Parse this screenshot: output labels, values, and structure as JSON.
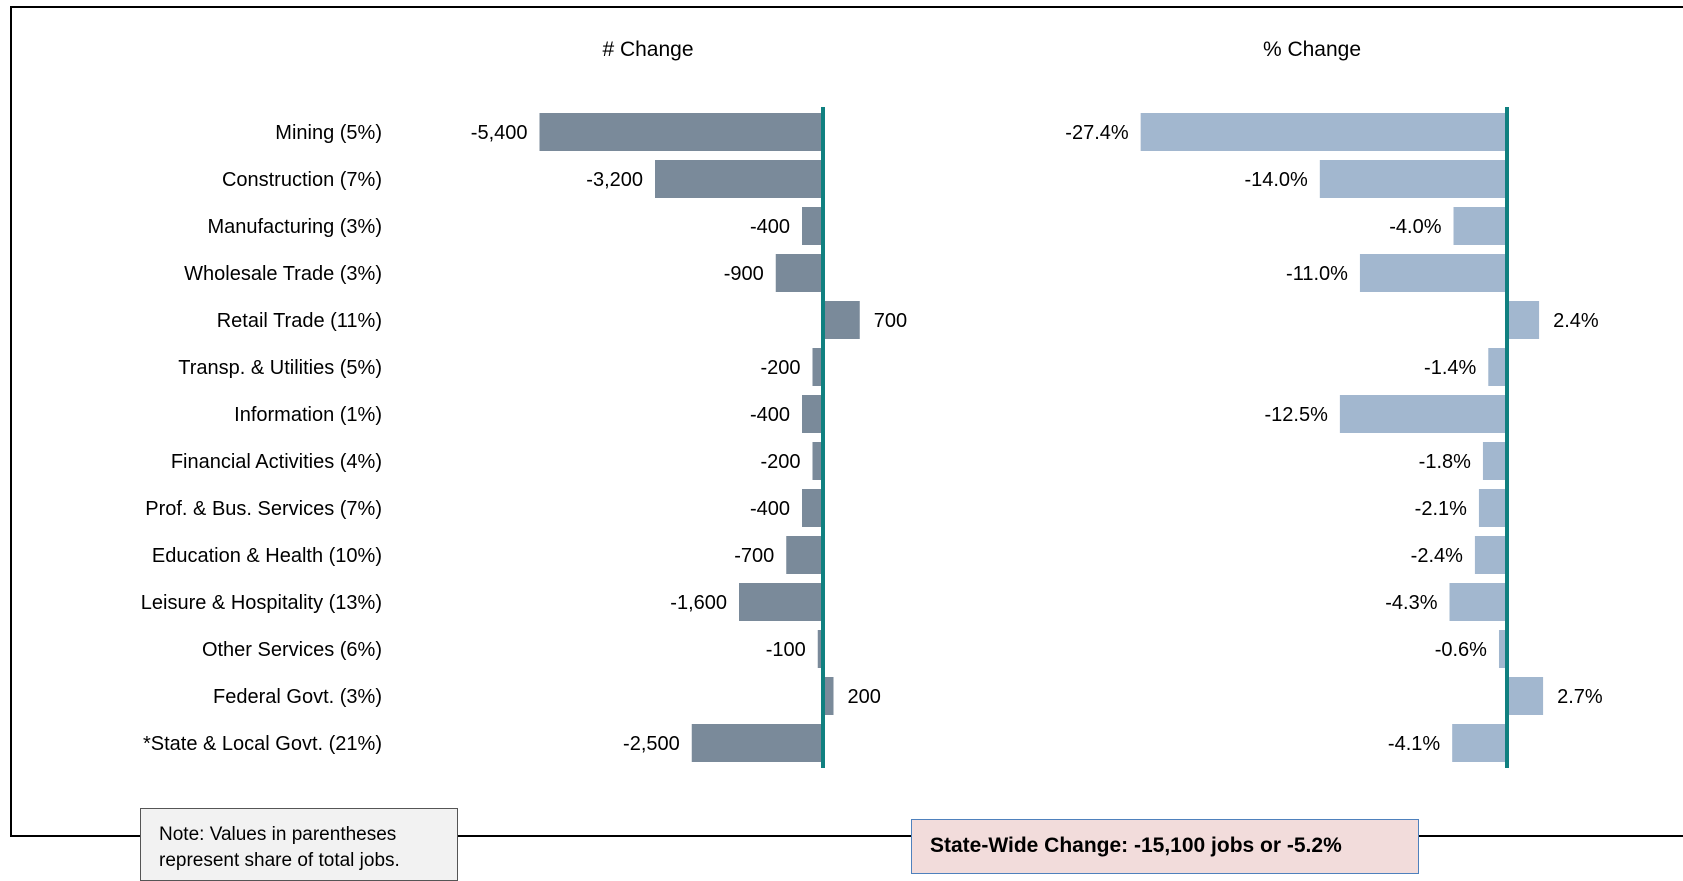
{
  "chart_data": [
    {
      "type": "bar",
      "orientation": "horizontal",
      "title": "# Change",
      "categories": [
        "Mining (5%)",
        "Construction (7%)",
        "Manufacturing (3%)",
        "Wholesale Trade (3%)",
        "Retail Trade (11%)",
        "Transp. & Utilities (5%)",
        "Information (1%)",
        "Financial Activities (4%)",
        "Prof. & Bus. Services (7%)",
        "Education & Health (10%)",
        "Leisure & Hospitality (13%)",
        "Other Services (6%)",
        "Federal Govt. (3%)",
        "*State & Local Govt. (21%)"
      ],
      "values": [
        -5400,
        -3200,
        -400,
        -900,
        700,
        -200,
        -400,
        -200,
        -400,
        -700,
        -1600,
        -100,
        200,
        -2500
      ],
      "labels": [
        "-5,400",
        "-3,200",
        "-400",
        "-900",
        "700",
        "-200",
        "-400",
        "-200",
        "-400",
        "-700",
        "-1,600",
        "-100",
        "200",
        "-2,500"
      ],
      "bar_color": "#7a8a9a",
      "zero_line_color": "#108080"
    },
    {
      "type": "bar",
      "orientation": "horizontal",
      "title": "% Change",
      "categories": [
        "Mining (5%)",
        "Construction (7%)",
        "Manufacturing (3%)",
        "Wholesale Trade (3%)",
        "Retail Trade (11%)",
        "Transp. & Utilities (5%)",
        "Information (1%)",
        "Financial Activities (4%)",
        "Prof. & Bus. Services (7%)",
        "Education & Health (10%)",
        "Leisure & Hospitality (13%)",
        "Other Services (6%)",
        "Federal Govt. (3%)",
        "*State & Local Govt. (21%)"
      ],
      "values": [
        -27.4,
        -14.0,
        -4.0,
        -11.0,
        2.4,
        -1.4,
        -12.5,
        -1.8,
        -2.1,
        -2.4,
        -4.3,
        -0.6,
        2.7,
        -4.1
      ],
      "labels": [
        "-27.4%",
        "-14.0%",
        "-4.0%",
        "-11.0%",
        "2.4%",
        "-1.4%",
        "-12.5%",
        "-1.8%",
        "-2.1%",
        "-2.4%",
        "-4.3%",
        "-0.6%",
        "2.7%",
        "-4.1%"
      ],
      "bar_color": "#a2b7cf",
      "zero_line_color": "#108080"
    }
  ],
  "note": {
    "line1": "Note: Values in parentheses",
    "line2": "represent share of total jobs."
  },
  "summary": {
    "text": "State-Wide Change: -15,100 jobs or -5.2%"
  }
}
